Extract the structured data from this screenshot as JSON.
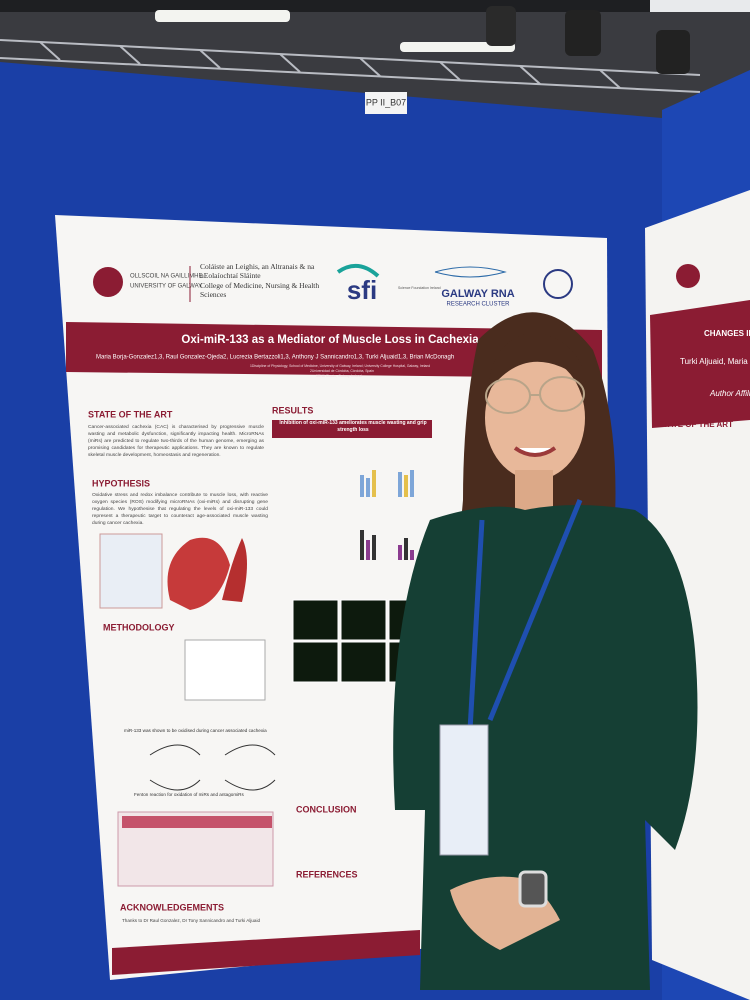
{
  "booth_label": "PP II_B07",
  "poster": {
    "logos": {
      "university": "OLLSCOIL NA GAILLIMHE",
      "university_en": "UNIVERSITY OF GALWAY",
      "college_ga": "Coláiste an Leighis, an Altranais & na nEolaíochtaí Sláinte",
      "college_en": "College of Medicine, Nursing & Health Sciences",
      "sfi": "sfi",
      "sfi_sub": "Science Foundation Ireland",
      "rna": "GALWAY RNA",
      "rna_sub": "RESEARCH CLUSTER"
    },
    "title": "Oxi-miR-133 as a Mediator of Muscle Loss in Cachexia",
    "authors": "Maria Borja-Gonzalez1,3, Raul Gonzalez-Ojeda2, Lucrezia Bertazzoli1,3, Anthony J Sannicandro1,3, Turki Aljuaid1,3, Brian McDonagh",
    "affiliations": [
      "1Discipline of Physiology, School of Medicine, University of Galway, Ireland; University College Hospital, Galway, Ireland",
      "2Universidad de Córdoba, Córdoba, Spain",
      "3RNA Cluster, Galway, Ireland"
    ],
    "sections": {
      "state_of_the_art": "STATE OF THE ART",
      "state_text": "Cancer-associated cachexia (CAC) is characterised by progressive muscle wasting and metabolic dysfunction, significantly impacting health. MicroRNAs (miRs) are predicted to regulate two-thirds of the human genome, emerging as promising candidates for therapeutic applications. They are known to regulate skeletal muscle development, homeostasis and regeneration.",
      "hypothesis": "HYPOTHESIS",
      "hypothesis_text": "Oxidative stress and redox imbalance contribute to muscle loss, with reactive oxygen species (ROS) modifying microRNAs (oxi-miRs) and disrupting gene regulation. We hypothesise that regulating the levels of oxi-miR-133 could represent a therapeutic target to counteract age-associated muscle wasting during cancer cachexia.",
      "methodology": "METHODOLOGY",
      "method_note": "miR-133 was shown to be oxidised during cancer associated cachexia",
      "fenton": "Fenton reaction for oxidation of miRs and antagomiRs",
      "acknowledgements": "ACKNOWLEDGEMENTS",
      "ack_text": "Thanks to Dr Raul Gonzalez, Dr Tony Sannicandro and Turki Aljuaid",
      "results": "RESULTS",
      "results_panel": "Inhibition of oxi-miR-133 ameliorates muscle wasting and grip strength loss",
      "conclusion": "CONCLUSION",
      "references": "REFERENCES"
    }
  },
  "side_poster": {
    "title": "CHANGES IN",
    "authors": "Turki Aljuaid, Maria",
    "affil": "Author Affili",
    "section": "STATE OF THE ART"
  }
}
